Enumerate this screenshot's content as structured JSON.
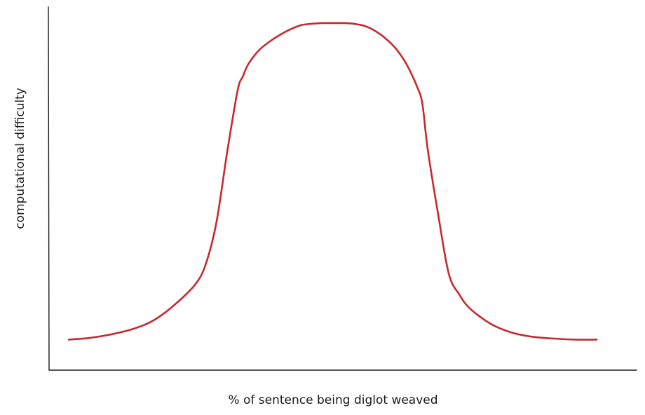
{
  "chart_data": {
    "type": "line",
    "title": "",
    "xlabel": "% of sentence being diglot weaved",
    "ylabel": "computational difficulty",
    "xlim": [
      0,
      100
    ],
    "ylim": [
      0,
      100
    ],
    "grid": false,
    "legend": "none",
    "series": [
      {
        "color": "#c8282e",
        "x": [
          0,
          4,
          8,
          12,
          16,
          20,
          24,
          26,
          28,
          30,
          32,
          33,
          34,
          36,
          38,
          40,
          42,
          44,
          46,
          48,
          50,
          52,
          54,
          56,
          58,
          60,
          62,
          64,
          66,
          67,
          68,
          70,
          72,
          74,
          76,
          80,
          84,
          88,
          92,
          96,
          100
        ],
        "y": [
          8,
          8.5,
          9.5,
          11,
          13.5,
          18,
          24,
          30,
          42,
          62,
          80,
          84,
          87.5,
          91.5,
          94,
          96,
          97.6,
          98.8,
          99.2,
          99.4,
          99.4,
          99.4,
          99.2,
          98.6,
          97.2,
          95,
          92,
          87.5,
          81,
          76,
          63,
          44,
          27,
          21,
          17,
          12.5,
          10,
          8.8,
          8.3,
          8,
          8
        ]
      }
    ]
  }
}
